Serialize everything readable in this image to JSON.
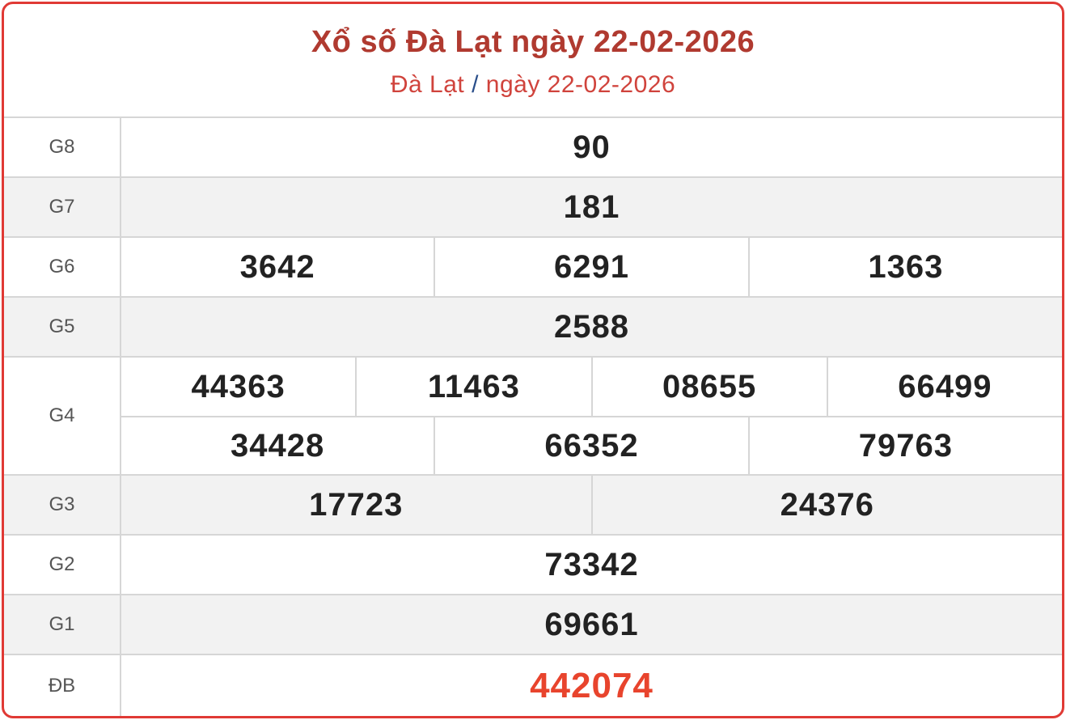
{
  "header": {
    "title": "Xổ số Đà Lạt ngày 22-02-2026",
    "breadcrumb_place": "Đà Lạt",
    "breadcrumb_sep": "/",
    "breadcrumb_date": "ngày 22-02-2026"
  },
  "colors": {
    "border": "#e03a35",
    "title": "#b03a30",
    "special": "#e8442d"
  },
  "prizes": {
    "g8": {
      "label": "G8",
      "values": [
        "90"
      ]
    },
    "g7": {
      "label": "G7",
      "values": [
        "181"
      ]
    },
    "g6": {
      "label": "G6",
      "values": [
        "3642",
        "6291",
        "1363"
      ]
    },
    "g5": {
      "label": "G5",
      "values": [
        "2588"
      ]
    },
    "g4": {
      "label": "G4",
      "values": [
        "44363",
        "11463",
        "08655",
        "66499",
        "34428",
        "66352",
        "79763"
      ]
    },
    "g3": {
      "label": "G3",
      "values": [
        "17723",
        "24376"
      ]
    },
    "g2": {
      "label": "G2",
      "values": [
        "73342"
      ]
    },
    "g1": {
      "label": "G1",
      "values": [
        "69661"
      ]
    },
    "db": {
      "label": "ĐB",
      "values": [
        "442074"
      ]
    }
  }
}
